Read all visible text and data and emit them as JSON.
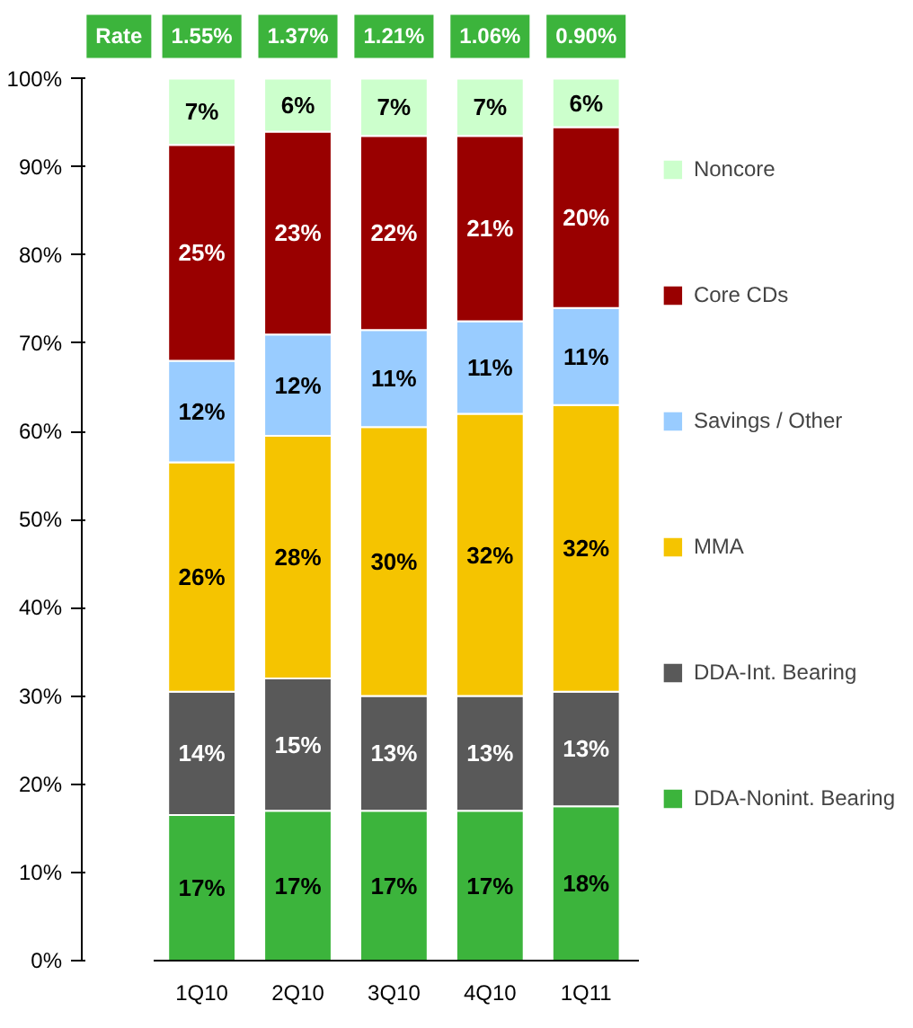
{
  "chart_data": {
    "type": "bar",
    "stacked": true,
    "categories": [
      "1Q10",
      "2Q10",
      "3Q10",
      "4Q10",
      "1Q11"
    ],
    "annotations": [
      "Rate",
      "1.55%",
      "1.37%",
      "1.21%",
      "1.06%",
      "0.90%"
    ],
    "ylim": [
      0,
      100
    ],
    "yticks": [
      {
        "value": 0,
        "label": "0%"
      },
      {
        "value": 10,
        "label": "10%"
      },
      {
        "value": 20,
        "label": "20%"
      },
      {
        "value": 30,
        "label": "30%"
      },
      {
        "value": 40,
        "label": "40%"
      },
      {
        "value": 50,
        "label": "50%"
      },
      {
        "value": 60,
        "label": "60%"
      },
      {
        "value": 70,
        "label": "70%"
      },
      {
        "value": 80,
        "label": "80%"
      },
      {
        "value": 90,
        "label": "90%"
      },
      {
        "value": 100,
        "label": "100%"
      }
    ],
    "grid": false,
    "legend": "right",
    "series": [
      {
        "name": "DDA-Nonint. Bearing",
        "color": "#3cb43c",
        "values": [
          16.5,
          17,
          17,
          17,
          17.5
        ],
        "value_labels": [
          "17%",
          "17%",
          "17%",
          "17%",
          "18%"
        ]
      },
      {
        "name": "DDA-Int. Bearing",
        "color": "#595959",
        "values": [
          14,
          15,
          13,
          13,
          13
        ],
        "value_labels": [
          "14%",
          "15%",
          "13%",
          "13%",
          "13%"
        ]
      },
      {
        "name": "MMA",
        "color": "#f5c400",
        "values": [
          26,
          27.5,
          30.5,
          32,
          32.5
        ],
        "value_labels": [
          "26%",
          "28%",
          "30%",
          "32%",
          "32%"
        ]
      },
      {
        "name": "Savings / Other",
        "color": "#99ccff",
        "values": [
          11.5,
          11.5,
          11,
          10.5,
          11
        ],
        "value_labels": [
          "12%",
          "12%",
          "11%",
          "11%",
          "11%"
        ]
      },
      {
        "name": "Core CDs",
        "color": "#990000",
        "values": [
          24.5,
          23,
          22,
          21,
          20.5
        ],
        "value_labels": [
          "25%",
          "23%",
          "22%",
          "21%",
          "20%"
        ]
      },
      {
        "name": "Noncore",
        "color": "#ccffcc",
        "values": [
          7.5,
          6,
          6.5,
          6.5,
          5.5
        ],
        "value_labels": [
          "7%",
          "6%",
          "7%",
          "7%",
          "6%"
        ]
      }
    ]
  }
}
